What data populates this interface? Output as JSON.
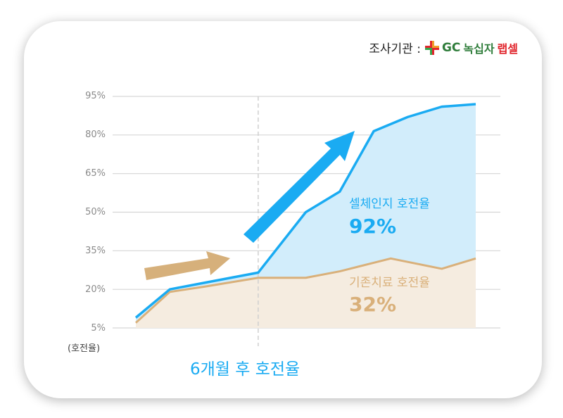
{
  "source": {
    "label": "조사기관 :",
    "logo_prefix": "GC",
    "logo_text": "녹십자",
    "logo_accent": "랩셀"
  },
  "chart_data": {
    "type": "area",
    "ylabel": "(호전율)",
    "yticks": [
      "95%",
      "80%",
      "65%",
      "50%",
      "35%",
      "20%",
      "5%"
    ],
    "ylim": [
      5,
      95
    ],
    "xlim": [
      0,
      10
    ],
    "grid": true,
    "marker_x": 3.6,
    "annotation": "6개월 후 호전율",
    "series": [
      {
        "name": "셀체인지 호전율",
        "final_label": "92%",
        "color": "#1aabf2",
        "fill": "#d2edfb",
        "x": [
          0,
          1,
          2,
          3.6,
          5,
          6,
          7,
          8,
          9,
          10
        ],
        "y": [
          9,
          20,
          22.5,
          26.5,
          50,
          58,
          81.5,
          87,
          91,
          92
        ]
      },
      {
        "name": "기존치료 호전율",
        "final_label": "32%",
        "color": "#d9b07a",
        "fill": "#f5ece0",
        "x": [
          0,
          1,
          2,
          3.6,
          5,
          6,
          7.5,
          9,
          10
        ],
        "y": [
          7,
          19,
          21,
          24.5,
          24.5,
          27,
          32,
          28,
          32
        ]
      }
    ],
    "colors": {
      "grid": "#d6d6d6",
      "marker": "#cfcfcf",
      "arrow_blue": "#1aabf2",
      "arrow_tan": "#d6b07b"
    }
  }
}
